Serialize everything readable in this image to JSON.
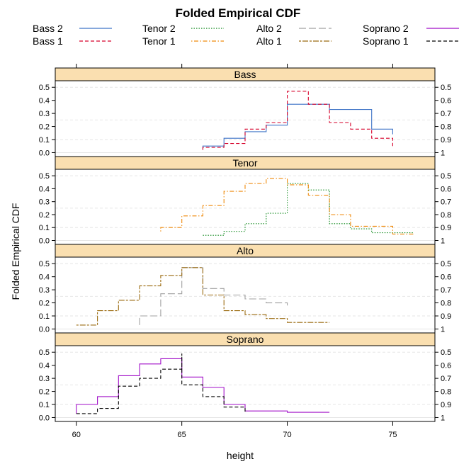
{
  "chart_data": {
    "type": "line",
    "title": "Folded Empirical CDF",
    "xlabel": "height",
    "ylabel": "Folded Empirical CDF",
    "xlim": [
      59,
      77
    ],
    "ylim": [
      -0.03,
      0.55
    ],
    "x_ticks": [
      60,
      65,
      70,
      75
    ],
    "y_ticks_left": [
      0.0,
      0.1,
      0.2,
      0.3,
      0.4,
      0.5
    ],
    "y_ticks_right_labels": [
      "1",
      "0.9",
      "0.8",
      "0.7",
      "0.6",
      "0.5"
    ],
    "grid": true,
    "legend": {
      "placement": "top",
      "entries": [
        {
          "name": "Bass 2",
          "color": "#3f74c7",
          "dash": "solid"
        },
        {
          "name": "Bass 1",
          "color": "#d6002a",
          "dash": "dashed"
        },
        {
          "name": "Tenor 2",
          "color": "#118a1e",
          "dash": "dotted"
        },
        {
          "name": "Tenor 1",
          "color": "#ef8a0c",
          "dash": "dotdash"
        },
        {
          "name": "Alto 2",
          "color": "#a0a0a0",
          "dash": "longdash"
        },
        {
          "name": "Alto 1",
          "color": "#9b6b10",
          "dash": "twodash"
        },
        {
          "name": "Soprano 2",
          "color": "#a10fc8",
          "dash": "solid"
        },
        {
          "name": "Soprano 1",
          "color": "#000000",
          "dash": "dashed"
        }
      ]
    },
    "panels": [
      {
        "name": "Bass",
        "series": [
          {
            "name": "Bass 2",
            "color": "#3f74c7",
            "dash": "solid",
            "points": [
              [
                66,
                0.03
              ],
              [
                66,
                0.05
              ],
              [
                67,
                0.05
              ],
              [
                67,
                0.11
              ],
              [
                68,
                0.11
              ],
              [
                68,
                0.16
              ],
              [
                69,
                0.16
              ],
              [
                69,
                0.21
              ],
              [
                70,
                0.21
              ],
              [
                70,
                0.37
              ],
              [
                72,
                0.37
              ],
              [
                72,
                0.33
              ],
              [
                74,
                0.33
              ],
              [
                74,
                0.18
              ],
              [
                75,
                0.18
              ],
              [
                75,
                0.14
              ]
            ]
          },
          {
            "name": "Bass 1",
            "color": "#d6002a",
            "dash": "dashed",
            "points": [
              [
                66,
                0.02
              ],
              [
                66,
                0.04
              ],
              [
                67,
                0.04
              ],
              [
                67,
                0.07
              ],
              [
                68,
                0.07
              ],
              [
                68,
                0.18
              ],
              [
                69,
                0.18
              ],
              [
                69,
                0.23
              ],
              [
                70,
                0.23
              ],
              [
                70,
                0.47
              ],
              [
                71,
                0.47
              ],
              [
                71,
                0.37
              ],
              [
                72,
                0.37
              ],
              [
                72,
                0.23
              ],
              [
                73,
                0.23
              ],
              [
                73,
                0.18
              ],
              [
                74,
                0.18
              ],
              [
                74,
                0.11
              ],
              [
                75,
                0.11
              ],
              [
                75,
                0.05
              ]
            ]
          }
        ]
      },
      {
        "name": "Tenor",
        "series": [
          {
            "name": "Tenor 2",
            "color": "#118a1e",
            "dash": "dotted",
            "points": [
              [
                66,
                0.04
              ],
              [
                67,
                0.04
              ],
              [
                67,
                0.07
              ],
              [
                68,
                0.07
              ],
              [
                68,
                0.13
              ],
              [
                69,
                0.13
              ],
              [
                69,
                0.21
              ],
              [
                70,
                0.21
              ],
              [
                70,
                0.44
              ],
              [
                71,
                0.44
              ],
              [
                71,
                0.39
              ],
              [
                72,
                0.39
              ],
              [
                72,
                0.13
              ],
              [
                73,
                0.13
              ],
              [
                73,
                0.09
              ],
              [
                74,
                0.09
              ],
              [
                74,
                0.06
              ],
              [
                76,
                0.06
              ]
            ]
          },
          {
            "name": "Tenor 1",
            "color": "#ef8a0c",
            "dash": "dotdash",
            "points": [
              [
                64,
                0.07
              ],
              [
                64,
                0.1
              ],
              [
                65,
                0.1
              ],
              [
                65,
                0.19
              ],
              [
                66,
                0.19
              ],
              [
                66,
                0.27
              ],
              [
                67,
                0.27
              ],
              [
                67,
                0.38
              ],
              [
                68,
                0.38
              ],
              [
                68,
                0.44
              ],
              [
                69,
                0.44
              ],
              [
                69,
                0.48
              ],
              [
                70,
                0.48
              ],
              [
                70,
                0.43
              ],
              [
                71,
                0.43
              ],
              [
                71,
                0.35
              ],
              [
                72,
                0.35
              ],
              [
                72,
                0.2
              ],
              [
                73,
                0.2
              ],
              [
                73,
                0.11
              ],
              [
                75,
                0.11
              ],
              [
                75,
                0.05
              ],
              [
                76,
                0.05
              ]
            ]
          }
        ]
      },
      {
        "name": "Alto",
        "series": [
          {
            "name": "Alto 2",
            "color": "#a0a0a0",
            "dash": "longdash",
            "points": [
              [
                63,
                0.03
              ],
              [
                63,
                0.1
              ],
              [
                64,
                0.1
              ],
              [
                64,
                0.27
              ],
              [
                65,
                0.27
              ],
              [
                65,
                0.47
              ],
              [
                66,
                0.47
              ],
              [
                66,
                0.31
              ],
              [
                67,
                0.31
              ],
              [
                67,
                0.26
              ],
              [
                68,
                0.26
              ],
              [
                68,
                0.23
              ],
              [
                69,
                0.23
              ],
              [
                69,
                0.2
              ],
              [
                70,
                0.2
              ],
              [
                70,
                0.18
              ]
            ]
          },
          {
            "name": "Alto 1",
            "color": "#9b6b10",
            "dash": "twodash",
            "points": [
              [
                60,
                0.03
              ],
              [
                61,
                0.03
              ],
              [
                61,
                0.14
              ],
              [
                62,
                0.14
              ],
              [
                62,
                0.22
              ],
              [
                63,
                0.22
              ],
              [
                63,
                0.33
              ],
              [
                64,
                0.33
              ],
              [
                64,
                0.41
              ],
              [
                65,
                0.41
              ],
              [
                65,
                0.47
              ],
              [
                66,
                0.47
              ],
              [
                66,
                0.26
              ],
              [
                67,
                0.26
              ],
              [
                67,
                0.14
              ],
              [
                68,
                0.14
              ],
              [
                68,
                0.11
              ],
              [
                69,
                0.11
              ],
              [
                69,
                0.08
              ],
              [
                70,
                0.08
              ],
              [
                70,
                0.05
              ],
              [
                72,
                0.05
              ]
            ]
          }
        ]
      },
      {
        "name": "Soprano",
        "series": [
          {
            "name": "Soprano 2",
            "color": "#a10fc8",
            "dash": "solid",
            "points": [
              [
                60,
                0.03
              ],
              [
                60,
                0.1
              ],
              [
                61,
                0.1
              ],
              [
                61,
                0.16
              ],
              [
                62,
                0.16
              ],
              [
                62,
                0.32
              ],
              [
                63,
                0.32
              ],
              [
                63,
                0.41
              ],
              [
                64,
                0.41
              ],
              [
                64,
                0.45
              ],
              [
                65,
                0.45
              ],
              [
                65,
                0.31
              ],
              [
                66,
                0.31
              ],
              [
                66,
                0.23
              ],
              [
                67,
                0.23
              ],
              [
                67,
                0.1
              ],
              [
                68,
                0.1
              ],
              [
                68,
                0.05
              ],
              [
                70,
                0.05
              ],
              [
                70,
                0.04
              ],
              [
                72,
                0.04
              ]
            ]
          },
          {
            "name": "Soprano 1",
            "color": "#000000",
            "dash": "dashed",
            "points": [
              [
                60,
                0.03
              ],
              [
                61,
                0.03
              ],
              [
                61,
                0.07
              ],
              [
                62,
                0.07
              ],
              [
                62,
                0.24
              ],
              [
                63,
                0.24
              ],
              [
                63,
                0.3
              ],
              [
                64,
                0.3
              ],
              [
                64,
                0.37
              ],
              [
                65,
                0.37
              ],
              [
                65,
                0.49
              ],
              [
                65,
                0.25
              ],
              [
                66,
                0.25
              ],
              [
                66,
                0.16
              ],
              [
                67,
                0.16
              ],
              [
                67,
                0.08
              ],
              [
                68,
                0.08
              ],
              [
                68,
                0.03
              ]
            ]
          }
        ]
      }
    ]
  }
}
